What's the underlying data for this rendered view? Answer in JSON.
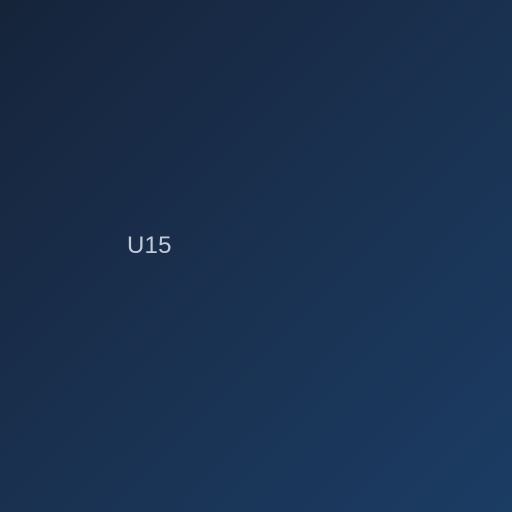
{
  "screen": {
    "label": "U15"
  },
  "colors": {
    "background_start": "#16243a",
    "background_mid": "#1a3252",
    "background_end": "#1b3c63",
    "label_text": "#c3cad6"
  }
}
